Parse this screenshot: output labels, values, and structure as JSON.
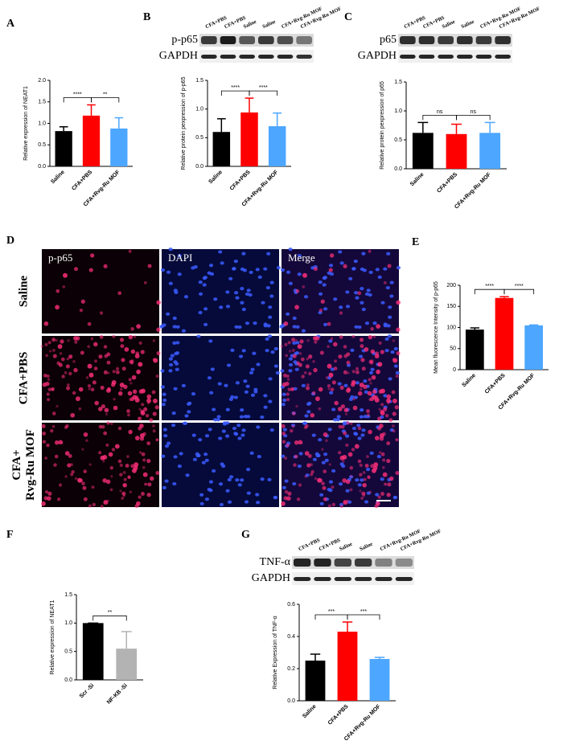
{
  "chart_data": [
    {
      "type": "bar",
      "panel": "A",
      "ylabel": "Relative expression of NEAT1",
      "categories": [
        "Saline",
        "CFA+PBS",
        "CFA+Rvg-Ru MOF"
      ],
      "values": [
        0.82,
        1.18,
        0.88
      ],
      "errors": [
        0.1,
        0.25,
        0.25
      ],
      "colors": [
        "#000000",
        "#ff0000",
        "#4da6ff"
      ],
      "ylim": [
        0,
        2
      ],
      "yticks": [
        {
          "value": 0,
          "label": "0.0"
        },
        0.5,
        {
          "value": 1,
          "label": "1.0"
        },
        1.5,
        {
          "value": 2,
          "label": "2.0"
        }
      ],
      "annotations": [
        "****",
        "**"
      ]
    },
    {
      "type": "bar",
      "panel": "B",
      "ylabel": "Relative protein pexpression of p-p65",
      "categories": [
        "Saline",
        "CFA+PBS",
        "CFA+Rvg-Ru MOF"
      ],
      "values": [
        0.6,
        0.94,
        0.7
      ],
      "errors": [
        0.23,
        0.25,
        0.23
      ],
      "colors": [
        "#000000",
        "#ff0000",
        "#4da6ff"
      ],
      "ylim": [
        0,
        1.5
      ],
      "yticks": [
        {
          "value": 0,
          "label": "0.0"
        },
        0.5,
        {
          "value": 1,
          "label": "1.0"
        },
        1.5
      ],
      "annotations": [
        "****",
        "****"
      ]
    },
    {
      "type": "bar",
      "panel": "C",
      "ylabel": "Relative protein pexpression of p65",
      "categories": [
        "Saline",
        "CFA+PBS",
        "CFA+Rvg-Ru MOF"
      ],
      "values": [
        0.62,
        0.6,
        0.62
      ],
      "errors": [
        0.18,
        0.17,
        0.18
      ],
      "colors": [
        "#000000",
        "#ff0000",
        "#4da6ff"
      ],
      "ylim": [
        0,
        1.5
      ],
      "yticks": [
        {
          "value": 0,
          "label": "0.0"
        },
        0.5,
        {
          "value": 1,
          "label": "1.0"
        },
        1.5
      ],
      "annotations": [
        "ns",
        "ns"
      ]
    },
    {
      "type": "bar",
      "panel": "E",
      "ylabel": "Mean fluorescence Intensity of p-p65",
      "categories": [
        "Saline",
        "CFA+PBS",
        "CFA+Rvg-Ru MOF"
      ],
      "values": [
        95,
        170,
        105
      ],
      "errors": [
        4,
        3,
        1
      ],
      "colors": [
        "#000000",
        "#ff0000",
        "#4da6ff"
      ],
      "ylim": [
        0,
        200
      ],
      "yticks": [
        0,
        50,
        100,
        150,
        200
      ],
      "annotations": [
        "****",
        "****"
      ]
    },
    {
      "type": "bar",
      "panel": "F",
      "ylabel": "Relative expression of NEAT1",
      "categories": [
        "Scr -Si",
        "NF-KB -Si"
      ],
      "values": [
        1.0,
        0.55
      ],
      "errors": [
        0,
        0.3
      ],
      "colors": [
        "#000000",
        "#b3b3b3"
      ],
      "ylim": [
        0,
        1.5
      ],
      "yticks": [
        {
          "value": 0,
          "label": "0.0"
        },
        0.5,
        {
          "value": 1,
          "label": "1.0"
        },
        1.5
      ],
      "annotations": [
        "**"
      ]
    },
    {
      "type": "bar",
      "panel": "G",
      "ylabel": "Relative Expression of TNF-α",
      "categories": [
        "Saline",
        "CFA+PBS",
        "CFA+Rvg-Ru MOF"
      ],
      "values": [
        0.25,
        0.43,
        0.26
      ],
      "errors": [
        0.04,
        0.06,
        0.01
      ],
      "colors": [
        "#000000",
        "#ff0000",
        "#4da6ff"
      ],
      "ylim": [
        0,
        0.6
      ],
      "yticks": [
        {
          "value": 0,
          "label": "0.0"
        },
        0.2,
        0.4,
        0.6
      ],
      "annotations": [
        "***",
        "***"
      ]
    }
  ],
  "blots": [
    {
      "lanes": [
        "CFA+PBS",
        "CFA+PBS",
        "Saline",
        "Saline",
        "CFA+Rvg-Ru MOF",
        "CFA+Rvg-Ru MOF"
      ],
      "rows": [
        "p-p65",
        "GAPDH"
      ]
    },
    {
      "lanes": [
        "CFA+PBS",
        "CFA+PBS",
        "Saline",
        "Saline",
        "CFA+Rvg-Ru MOF",
        "CFA+Rvg-Ru MOF"
      ],
      "rows": [
        "p65",
        "GAPDH"
      ]
    },
    {
      "lanes": [
        "CFA+PBS",
        "CFA+PBS",
        "Saline",
        "Saline",
        "CFA+Rvg-Ru MOF",
        "CFA+Rvg-Ru MOF"
      ],
      "rows": [
        "TNF-α",
        "GAPDH"
      ]
    }
  ],
  "micrographs": {
    "panel": "D",
    "columns": [
      "p-p65",
      "DAPI",
      "Merge"
    ],
    "rows": [
      [
        "Saline"
      ],
      [
        "CFA+PBS"
      ],
      [
        "CFA+",
        "Rvg-Ru MOF"
      ]
    ]
  }
}
